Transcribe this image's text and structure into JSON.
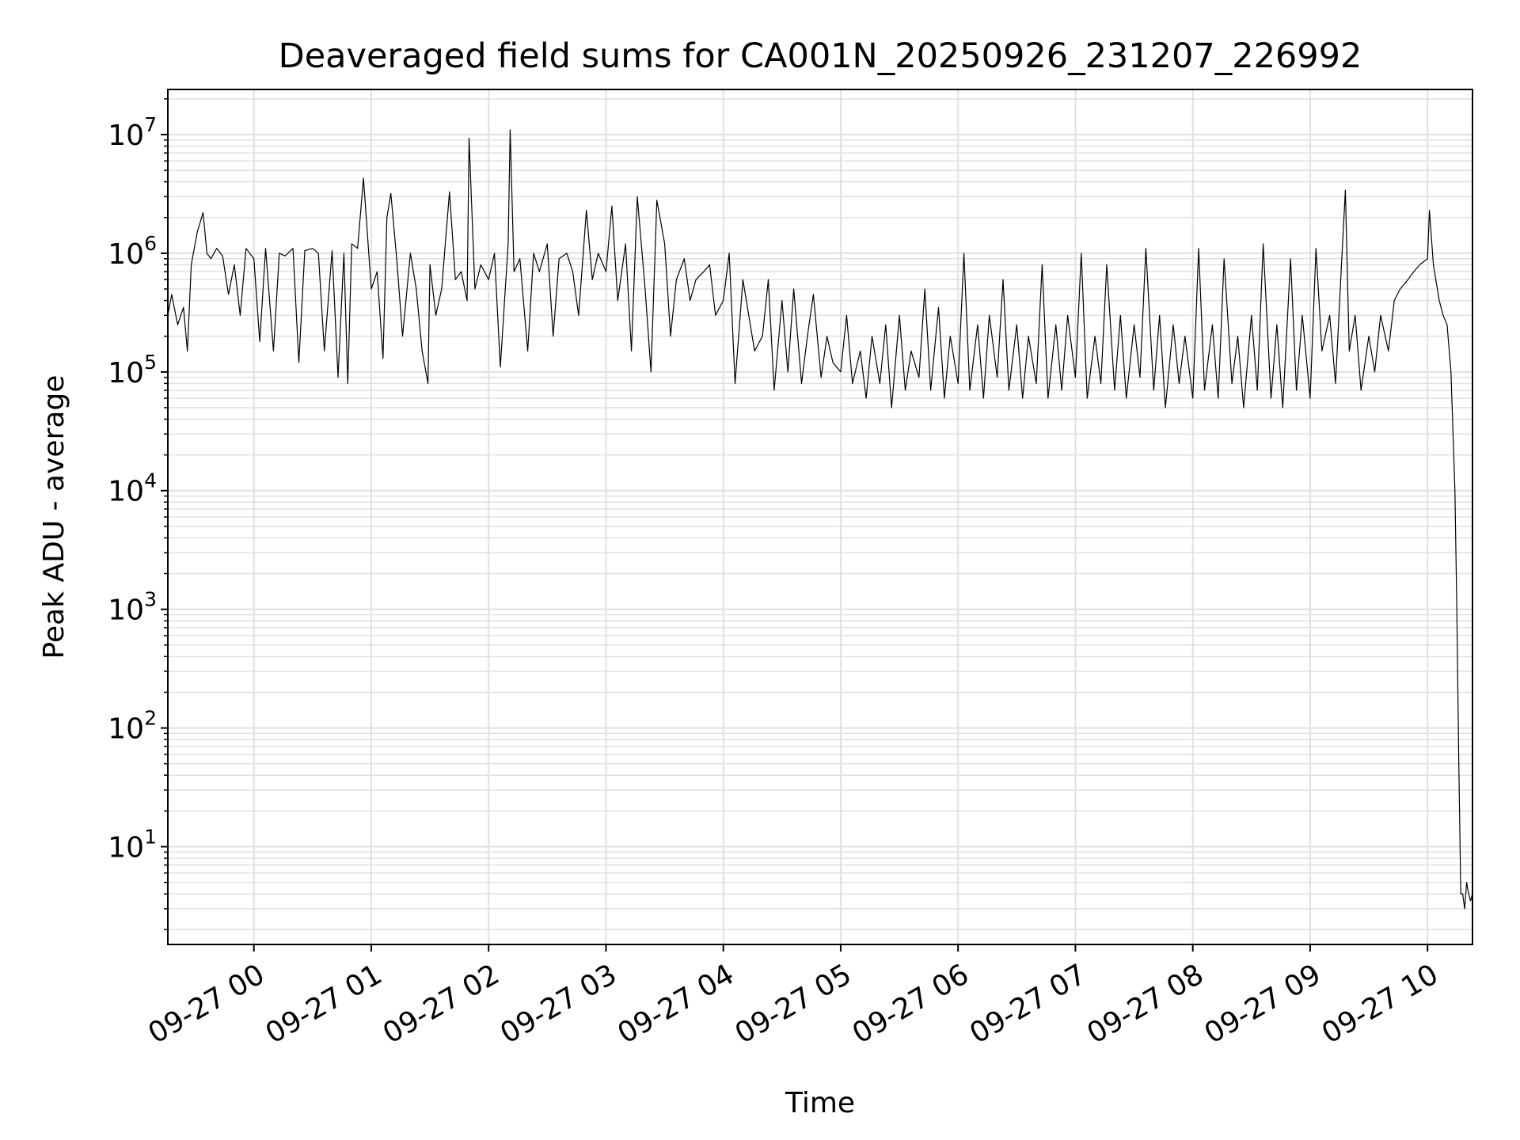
{
  "chart_data": {
    "type": "line",
    "title": "Deaveraged field sums for CA001N_20250926_231207_226992",
    "xlabel": "Time",
    "ylabel": "Peak ADU - average",
    "yscale": "log",
    "ylim": [
      1.5,
      24000000
    ],
    "xlim": [
      "2025-09-26 23:16",
      "2025-09-27 10:23"
    ],
    "grid": true,
    "line_color": "#000000",
    "grid_color": "#e0e0e0",
    "x_ticks": [
      {
        "t": "2025-09-27 00:00",
        "label": "09-27 00"
      },
      {
        "t": "2025-09-27 01:00",
        "label": "09-27 01"
      },
      {
        "t": "2025-09-27 02:00",
        "label": "09-27 02"
      },
      {
        "t": "2025-09-27 03:00",
        "label": "09-27 03"
      },
      {
        "t": "2025-09-27 04:00",
        "label": "09-27 04"
      },
      {
        "t": "2025-09-27 05:00",
        "label": "09-27 05"
      },
      {
        "t": "2025-09-27 06:00",
        "label": "09-27 06"
      },
      {
        "t": "2025-09-27 07:00",
        "label": "09-27 07"
      },
      {
        "t": "2025-09-27 08:00",
        "label": "09-27 08"
      },
      {
        "t": "2025-09-27 09:00",
        "label": "09-27 09"
      },
      {
        "t": "2025-09-27 10:00",
        "label": "09-27 10"
      }
    ],
    "y_ticks": [
      {
        "value": 10,
        "base": "10",
        "exp": "1"
      },
      {
        "value": 100,
        "base": "10",
        "exp": "2"
      },
      {
        "value": 1000,
        "base": "10",
        "exp": "3"
      },
      {
        "value": 10000,
        "base": "10",
        "exp": "4"
      },
      {
        "value": 100000,
        "base": "10",
        "exp": "5"
      },
      {
        "value": 1000000,
        "base": "10",
        "exp": "6"
      },
      {
        "value": 10000000,
        "base": "10",
        "exp": "7"
      }
    ],
    "series": [
      {
        "x": [
          "2025-09-26 23:16",
          "2025-09-26 23:18",
          "2025-09-26 23:21",
          "2025-09-26 23:24",
          "2025-09-26 23:26",
          "2025-09-26 23:28",
          "2025-09-26 23:31",
          "2025-09-26 23:34",
          "2025-09-26 23:36",
          "2025-09-26 23:38",
          "2025-09-26 23:41",
          "2025-09-26 23:44",
          "2025-09-26 23:47",
          "2025-09-26 23:50",
          "2025-09-26 23:53",
          "2025-09-26 23:56",
          "2025-09-27 00:00",
          "2025-09-27 00:03",
          "2025-09-27 00:06",
          "2025-09-27 00:10",
          "2025-09-27 00:13",
          "2025-09-27 00:16",
          "2025-09-27 00:20",
          "2025-09-27 00:23",
          "2025-09-27 00:26",
          "2025-09-27 00:30",
          "2025-09-27 00:33",
          "2025-09-27 00:36",
          "2025-09-27 00:40",
          "2025-09-27 00:43",
          "2025-09-27 00:46",
          "2025-09-27 00:48",
          "2025-09-27 00:50",
          "2025-09-27 00:53",
          "2025-09-27 00:56",
          "2025-09-27 01:00",
          "2025-09-27 01:03",
          "2025-09-27 01:06",
          "2025-09-27 01:08",
          "2025-09-27 01:10",
          "2025-09-27 01:13",
          "2025-09-27 01:16",
          "2025-09-27 01:20",
          "2025-09-27 01:23",
          "2025-09-27 01:26",
          "2025-09-27 01:29",
          "2025-09-27 01:30",
          "2025-09-27 01:33",
          "2025-09-27 01:36",
          "2025-09-27 01:40",
          "2025-09-27 01:43",
          "2025-09-27 01:46",
          "2025-09-27 01:49",
          "2025-09-27 01:50",
          "2025-09-27 01:53",
          "2025-09-27 01:56",
          "2025-09-27 02:00",
          "2025-09-27 02:03",
          "2025-09-27 02:06",
          "2025-09-27 02:10",
          "2025-09-27 02:11",
          "2025-09-27 02:13",
          "2025-09-27 02:16",
          "2025-09-27 02:20",
          "2025-09-27 02:23",
          "2025-09-27 02:26",
          "2025-09-27 02:30",
          "2025-09-27 02:33",
          "2025-09-27 02:36",
          "2025-09-27 02:40",
          "2025-09-27 02:43",
          "2025-09-27 02:46",
          "2025-09-27 02:50",
          "2025-09-27 02:53",
          "2025-09-27 02:56",
          "2025-09-27 03:00",
          "2025-09-27 03:03",
          "2025-09-27 03:06",
          "2025-09-27 03:10",
          "2025-09-27 03:13",
          "2025-09-27 03:16",
          "2025-09-27 03:20",
          "2025-09-27 03:23",
          "2025-09-27 03:26",
          "2025-09-27 03:30",
          "2025-09-27 03:33",
          "2025-09-27 03:36",
          "2025-09-27 03:40",
          "2025-09-27 03:43",
          "2025-09-27 03:46",
          "2025-09-27 03:50",
          "2025-09-27 03:53",
          "2025-09-27 03:56",
          "2025-09-27 04:00",
          "2025-09-27 04:03",
          "2025-09-27 04:06",
          "2025-09-27 04:10",
          "2025-09-27 04:13",
          "2025-09-27 04:16",
          "2025-09-27 04:20",
          "2025-09-27 04:23",
          "2025-09-27 04:26",
          "2025-09-27 04:30",
          "2025-09-27 04:33",
          "2025-09-27 04:36",
          "2025-09-27 04:40",
          "2025-09-27 04:43",
          "2025-09-27 04:46",
          "2025-09-27 04:50",
          "2025-09-27 04:53",
          "2025-09-27 04:56",
          "2025-09-27 05:00",
          "2025-09-27 05:03",
          "2025-09-27 05:06",
          "2025-09-27 05:10",
          "2025-09-27 05:13",
          "2025-09-27 05:16",
          "2025-09-27 05:20",
          "2025-09-27 05:23",
          "2025-09-27 05:26",
          "2025-09-27 05:30",
          "2025-09-27 05:33",
          "2025-09-27 05:36",
          "2025-09-27 05:40",
          "2025-09-27 05:43",
          "2025-09-27 05:46",
          "2025-09-27 05:50",
          "2025-09-27 05:53",
          "2025-09-27 05:56",
          "2025-09-27 06:00",
          "2025-09-27 06:03",
          "2025-09-27 06:06",
          "2025-09-27 06:10",
          "2025-09-27 06:13",
          "2025-09-27 06:16",
          "2025-09-27 06:20",
          "2025-09-27 06:23",
          "2025-09-27 06:26",
          "2025-09-27 06:30",
          "2025-09-27 06:33",
          "2025-09-27 06:36",
          "2025-09-27 06:40",
          "2025-09-27 06:43",
          "2025-09-27 06:46",
          "2025-09-27 06:50",
          "2025-09-27 06:53",
          "2025-09-27 06:56",
          "2025-09-27 07:00",
          "2025-09-27 07:03",
          "2025-09-27 07:06",
          "2025-09-27 07:10",
          "2025-09-27 07:13",
          "2025-09-27 07:16",
          "2025-09-27 07:20",
          "2025-09-27 07:23",
          "2025-09-27 07:26",
          "2025-09-27 07:30",
          "2025-09-27 07:33",
          "2025-09-27 07:36",
          "2025-09-27 07:40",
          "2025-09-27 07:43",
          "2025-09-27 07:46",
          "2025-09-27 07:50",
          "2025-09-27 07:53",
          "2025-09-27 07:56",
          "2025-09-27 08:00",
          "2025-09-27 08:03",
          "2025-09-27 08:06",
          "2025-09-27 08:10",
          "2025-09-27 08:13",
          "2025-09-27 08:16",
          "2025-09-27 08:20",
          "2025-09-27 08:23",
          "2025-09-27 08:26",
          "2025-09-27 08:30",
          "2025-09-27 08:33",
          "2025-09-27 08:36",
          "2025-09-27 08:40",
          "2025-09-27 08:43",
          "2025-09-27 08:46",
          "2025-09-27 08:50",
          "2025-09-27 08:53",
          "2025-09-27 08:56",
          "2025-09-27 09:00",
          "2025-09-27 09:03",
          "2025-09-27 09:06",
          "2025-09-27 09:10",
          "2025-09-27 09:13",
          "2025-09-27 09:16",
          "2025-09-27 09:18",
          "2025-09-27 09:20",
          "2025-09-27 09:23",
          "2025-09-27 09:26",
          "2025-09-27 09:30",
          "2025-09-27 09:33",
          "2025-09-27 09:36",
          "2025-09-27 09:40",
          "2025-09-27 09:43",
          "2025-09-27 09:46",
          "2025-09-27 09:50",
          "2025-09-27 09:53",
          "2025-09-27 09:56",
          "2025-09-27 10:00",
          "2025-09-27 10:01",
          "2025-09-27 10:03",
          "2025-09-27 10:06",
          "2025-09-27 10:08",
          "2025-09-27 10:10",
          "2025-09-27 10:12",
          "2025-09-27 10:14",
          "2025-09-27 10:15",
          "2025-09-27 10:16",
          "2025-09-27 10:17",
          "2025-09-27 10:18",
          "2025-09-27 10:19",
          "2025-09-27 10:20",
          "2025-09-27 10:21",
          "2025-09-27 10:22",
          "2025-09-27 10:23"
        ],
        "y": [
          300000,
          450000,
          250000,
          350000,
          150000,
          800000,
          1500000,
          2200000,
          1000000,
          900000,
          1100000,
          950000,
          450000,
          800000,
          300000,
          1100000,
          900000,
          180000,
          1100000,
          150000,
          1000000,
          950000,
          1100000,
          120000,
          1050000,
          1100000,
          1000000,
          150000,
          1050000,
          90000,
          1000000,
          80000,
          1200000,
          1100000,
          4300000,
          500000,
          700000,
          130000,
          2000000,
          3200000,
          900000,
          200000,
          1000000,
          500000,
          150000,
          80000,
          800000,
          300000,
          500000,
          3300000,
          600000,
          700000,
          400000,
          9300000,
          500000,
          800000,
          600000,
          1000000,
          110000,
          1200000,
          11000000,
          700000,
          900000,
          150000,
          1000000,
          700000,
          1200000,
          200000,
          900000,
          1000000,
          700000,
          300000,
          2300000,
          600000,
          1000000,
          700000,
          2500000,
          400000,
          1200000,
          150000,
          3000000,
          500000,
          100000,
          2800000,
          1200000,
          200000,
          600000,
          900000,
          400000,
          600000,
          700000,
          800000,
          300000,
          400000,
          1000000,
          80000,
          600000,
          300000,
          150000,
          200000,
          600000,
          70000,
          400000,
          100000,
          500000,
          80000,
          200000,
          450000,
          90000,
          200000,
          120000,
          100000,
          300000,
          80000,
          150000,
          60000,
          200000,
          80000,
          250000,
          50000,
          300000,
          70000,
          150000,
          90000,
          500000,
          70000,
          350000,
          60000,
          200000,
          80000,
          1000000,
          70000,
          250000,
          60000,
          300000,
          90000,
          600000,
          70000,
          250000,
          60000,
          200000,
          80000,
          800000,
          60000,
          250000,
          70000,
          300000,
          90000,
          1000000,
          60000,
          200000,
          80000,
          800000,
          70000,
          300000,
          60000,
          250000,
          90000,
          1100000,
          70000,
          300000,
          50000,
          250000,
          80000,
          200000,
          60000,
          1100000,
          70000,
          250000,
          60000,
          900000,
          80000,
          200000,
          50000,
          300000,
          70000,
          1200000,
          60000,
          250000,
          50000,
          900000,
          70000,
          300000,
          60000,
          1100000,
          150000,
          300000,
          80000,
          800000,
          3400000,
          150000,
          300000,
          70000,
          200000,
          100000,
          300000,
          150000,
          400000,
          500000,
          600000,
          700000,
          800000,
          900000,
          2300000,
          800000,
          400000,
          300000,
          250000,
          100000,
          10000,
          1000,
          50,
          4,
          4,
          3,
          5,
          4,
          3.5,
          4
        ]
      }
    ]
  }
}
